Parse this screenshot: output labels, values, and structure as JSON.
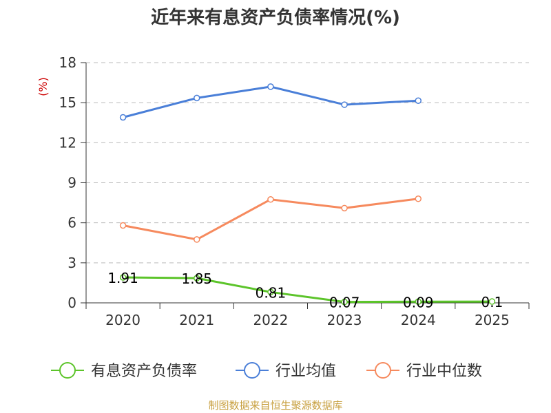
{
  "chart_data": {
    "type": "line",
    "title": "近年来有息资产负债率情况(%)",
    "ylabel": "(%)",
    "xlabel": "",
    "categories": [
      "2020",
      "2021",
      "2022",
      "2023",
      "2024",
      "2025"
    ],
    "ylim": [
      0,
      18
    ],
    "yticks": [
      0,
      3,
      6,
      9,
      12,
      15,
      18
    ],
    "grid": true,
    "legend_position": "bottom",
    "series": [
      {
        "name": "有息资产负债率",
        "color": "#5cc42a",
        "values": [
          1.91,
          1.85,
          0.81,
          0.07,
          0.09,
          0.1
        ],
        "labels": [
          "1.91",
          "1.85",
          "0.81",
          "0.07",
          "0.09",
          "0.1"
        ]
      },
      {
        "name": "行业均值",
        "color": "#4a7fd8",
        "values": [
          13.9,
          15.35,
          16.2,
          14.85,
          15.15,
          null
        ]
      },
      {
        "name": "行业中位数",
        "color": "#f68a5e",
        "values": [
          5.8,
          4.75,
          7.75,
          7.1,
          7.8,
          null
        ]
      }
    ]
  },
  "source_text": "制图数据来自恒生聚源数据库"
}
